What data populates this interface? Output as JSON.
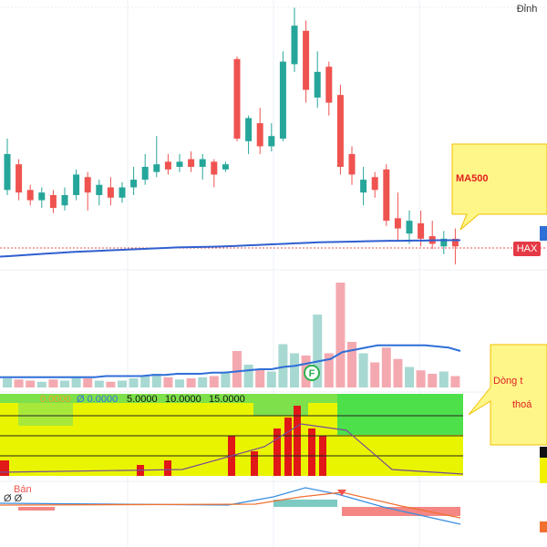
{
  "chart_data": [
    {
      "type": "candlestick",
      "symbol": "HAX",
      "peak_label": "Đỉnh",
      "up_color": "#26a69a",
      "down_color": "#ef5350",
      "ylim": [
        -3,
        100
      ],
      "open": [
        26,
        36,
        26,
        22,
        24,
        20,
        24,
        31,
        24,
        27,
        23,
        27,
        30,
        33,
        37,
        35,
        38,
        35,
        37,
        34,
        77,
        45,
        52,
        43,
        46,
        75,
        88,
        62,
        74,
        63,
        40,
        25,
        31,
        34,
        15,
        9,
        13,
        8,
        4,
        7
      ],
      "high": [
        46,
        38,
        28,
        27,
        26,
        27,
        34,
        33,
        30,
        31,
        29,
        35,
        40,
        47,
        40,
        40,
        41,
        40,
        38,
        37,
        78,
        55,
        58,
        52,
        80,
        97,
        92,
        80,
        76,
        67,
        43,
        35,
        33,
        36,
        25,
        18,
        18,
        14,
        10,
        11
      ],
      "low": [
        24,
        22,
        20,
        19,
        17,
        18,
        22,
        18,
        20,
        20,
        21,
        24,
        28,
        31,
        32,
        33,
        33,
        30,
        27,
        33,
        45,
        40,
        40,
        41,
        45,
        72,
        60,
        58,
        55,
        32,
        28,
        20,
        23,
        12,
        6,
        5,
        4,
        3,
        1,
        -3
      ],
      "close": [
        40,
        25,
        22,
        25,
        19,
        24,
        32,
        25,
        28,
        23,
        27,
        30,
        35,
        36,
        34,
        37,
        35,
        38,
        32,
        36,
        46,
        54,
        43,
        47,
        76,
        90,
        65,
        72,
        60,
        35,
        32,
        30,
        26,
        14,
        11,
        14,
        7,
        5,
        7,
        4
      ],
      "series": [
        {
          "name": "MA500",
          "color": "#2f5fd0",
          "values": [
            0.0,
            0.3,
            0.6,
            0.9,
            1.2,
            1.5,
            1.8,
            2.0,
            2.2,
            2.4,
            2.6,
            2.8,
            3.0,
            3.2,
            3.4,
            3.6,
            3.7,
            3.8,
            3.9,
            4.0,
            4.2,
            4.4,
            4.6,
            4.8,
            5.0,
            5.2,
            5.4,
            5.6,
            5.7,
            5.8,
            5.9,
            6.0,
            6.1,
            6.2,
            6.2,
            6.3,
            6.3,
            6.4,
            6.4,
            6.4
          ]
        }
      ]
    },
    {
      "type": "volume",
      "ylim": [
        0,
        100
      ],
      "up_color": "#a8d8d2",
      "down_color": "#f4a9b0",
      "marker": "F",
      "values": [
        8,
        7,
        6,
        5,
        7,
        6,
        9,
        8,
        6,
        5,
        6,
        8,
        10,
        12,
        9,
        7,
        8,
        9,
        10,
        14,
        32,
        20,
        16,
        14,
        38,
        30,
        28,
        64,
        30,
        92,
        40,
        30,
        22,
        35,
        25,
        18,
        15,
        12,
        14,
        10
      ],
      "series": [
        {
          "color": "#2f6fd8",
          "values": [
            9,
            9,
            9,
            9,
            9,
            9,
            9,
            9,
            9,
            10,
            10,
            10,
            10,
            11,
            11,
            12,
            12,
            12,
            13,
            13,
            14,
            15,
            16,
            16,
            18,
            19,
            21,
            23,
            25,
            31,
            33,
            35,
            37,
            37,
            37,
            37,
            37,
            36,
            35,
            32
          ]
        }
      ]
    }
  ],
  "indicator_labels": [
    "0.0000",
    "Ø 0.0000",
    "5.0000",
    "10.0000",
    "15.0000"
  ],
  "callout": [
    "Dòng t",
    "thoá"
  ],
  "macd_labels": [
    "Ø Ø",
    "Bán"
  ]
}
